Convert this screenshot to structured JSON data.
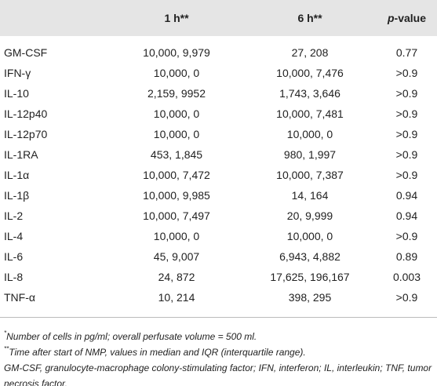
{
  "table": {
    "header": [
      "1 h**",
      "6 h**"
    ],
    "p_header": {
      "italic": "p",
      "text": "-value"
    },
    "rows": [
      [
        "GM-CSF",
        "10,000, 9,979",
        "27, 208",
        "0.77"
      ],
      [
        "IFN-γ",
        "10,000, 0",
        "10,000, 7,476",
        ">0.9"
      ],
      [
        "IL-10",
        "2,159, 9952",
        "1,743, 3,646",
        ">0.9"
      ],
      [
        "IL-12p40",
        "10,000, 0",
        "10,000, 7,481",
        ">0.9"
      ],
      [
        "IL-12p70",
        "10,000, 0",
        "10,000, 0",
        ">0.9"
      ],
      [
        "IL-1RA",
        "453, 1,845",
        "980, 1,997",
        ">0.9"
      ],
      [
        "IL-1α",
        "10,000, 7,472",
        "10,000, 7,387",
        ">0.9"
      ],
      [
        "IL-1β",
        "10,000, 9,985",
        "14, 164",
        "0.94"
      ],
      [
        "IL-2",
        "10,000, 7,497",
        "20, 9,999",
        "0.94"
      ],
      [
        "IL-4",
        "10,000, 0",
        "10,000, 0",
        ">0.9"
      ],
      [
        "IL-6",
        "45, 9,007",
        "6,943, 4,882",
        "0.89"
      ],
      [
        "IL-8",
        "24, 872",
        "17,625, 196,167",
        "0.003"
      ],
      [
        "TNF-α",
        "10, 214",
        "398, 295",
        ">0.9"
      ]
    ]
  },
  "footnotes": [
    {
      "marker": "*",
      "text": "Number of cells in pg/ml; overall perfusate volume = 500 ml."
    },
    {
      "marker": "**",
      "text": "Time after start of NMP, values in median and IQR (interquartile range)."
    }
  ],
  "abbreviations": "GM-CSF, granulocyte-macrophage colony-stimulating factor; IFN, interferon; IL, interleukin; TNF, tumor necrosis factor."
}
